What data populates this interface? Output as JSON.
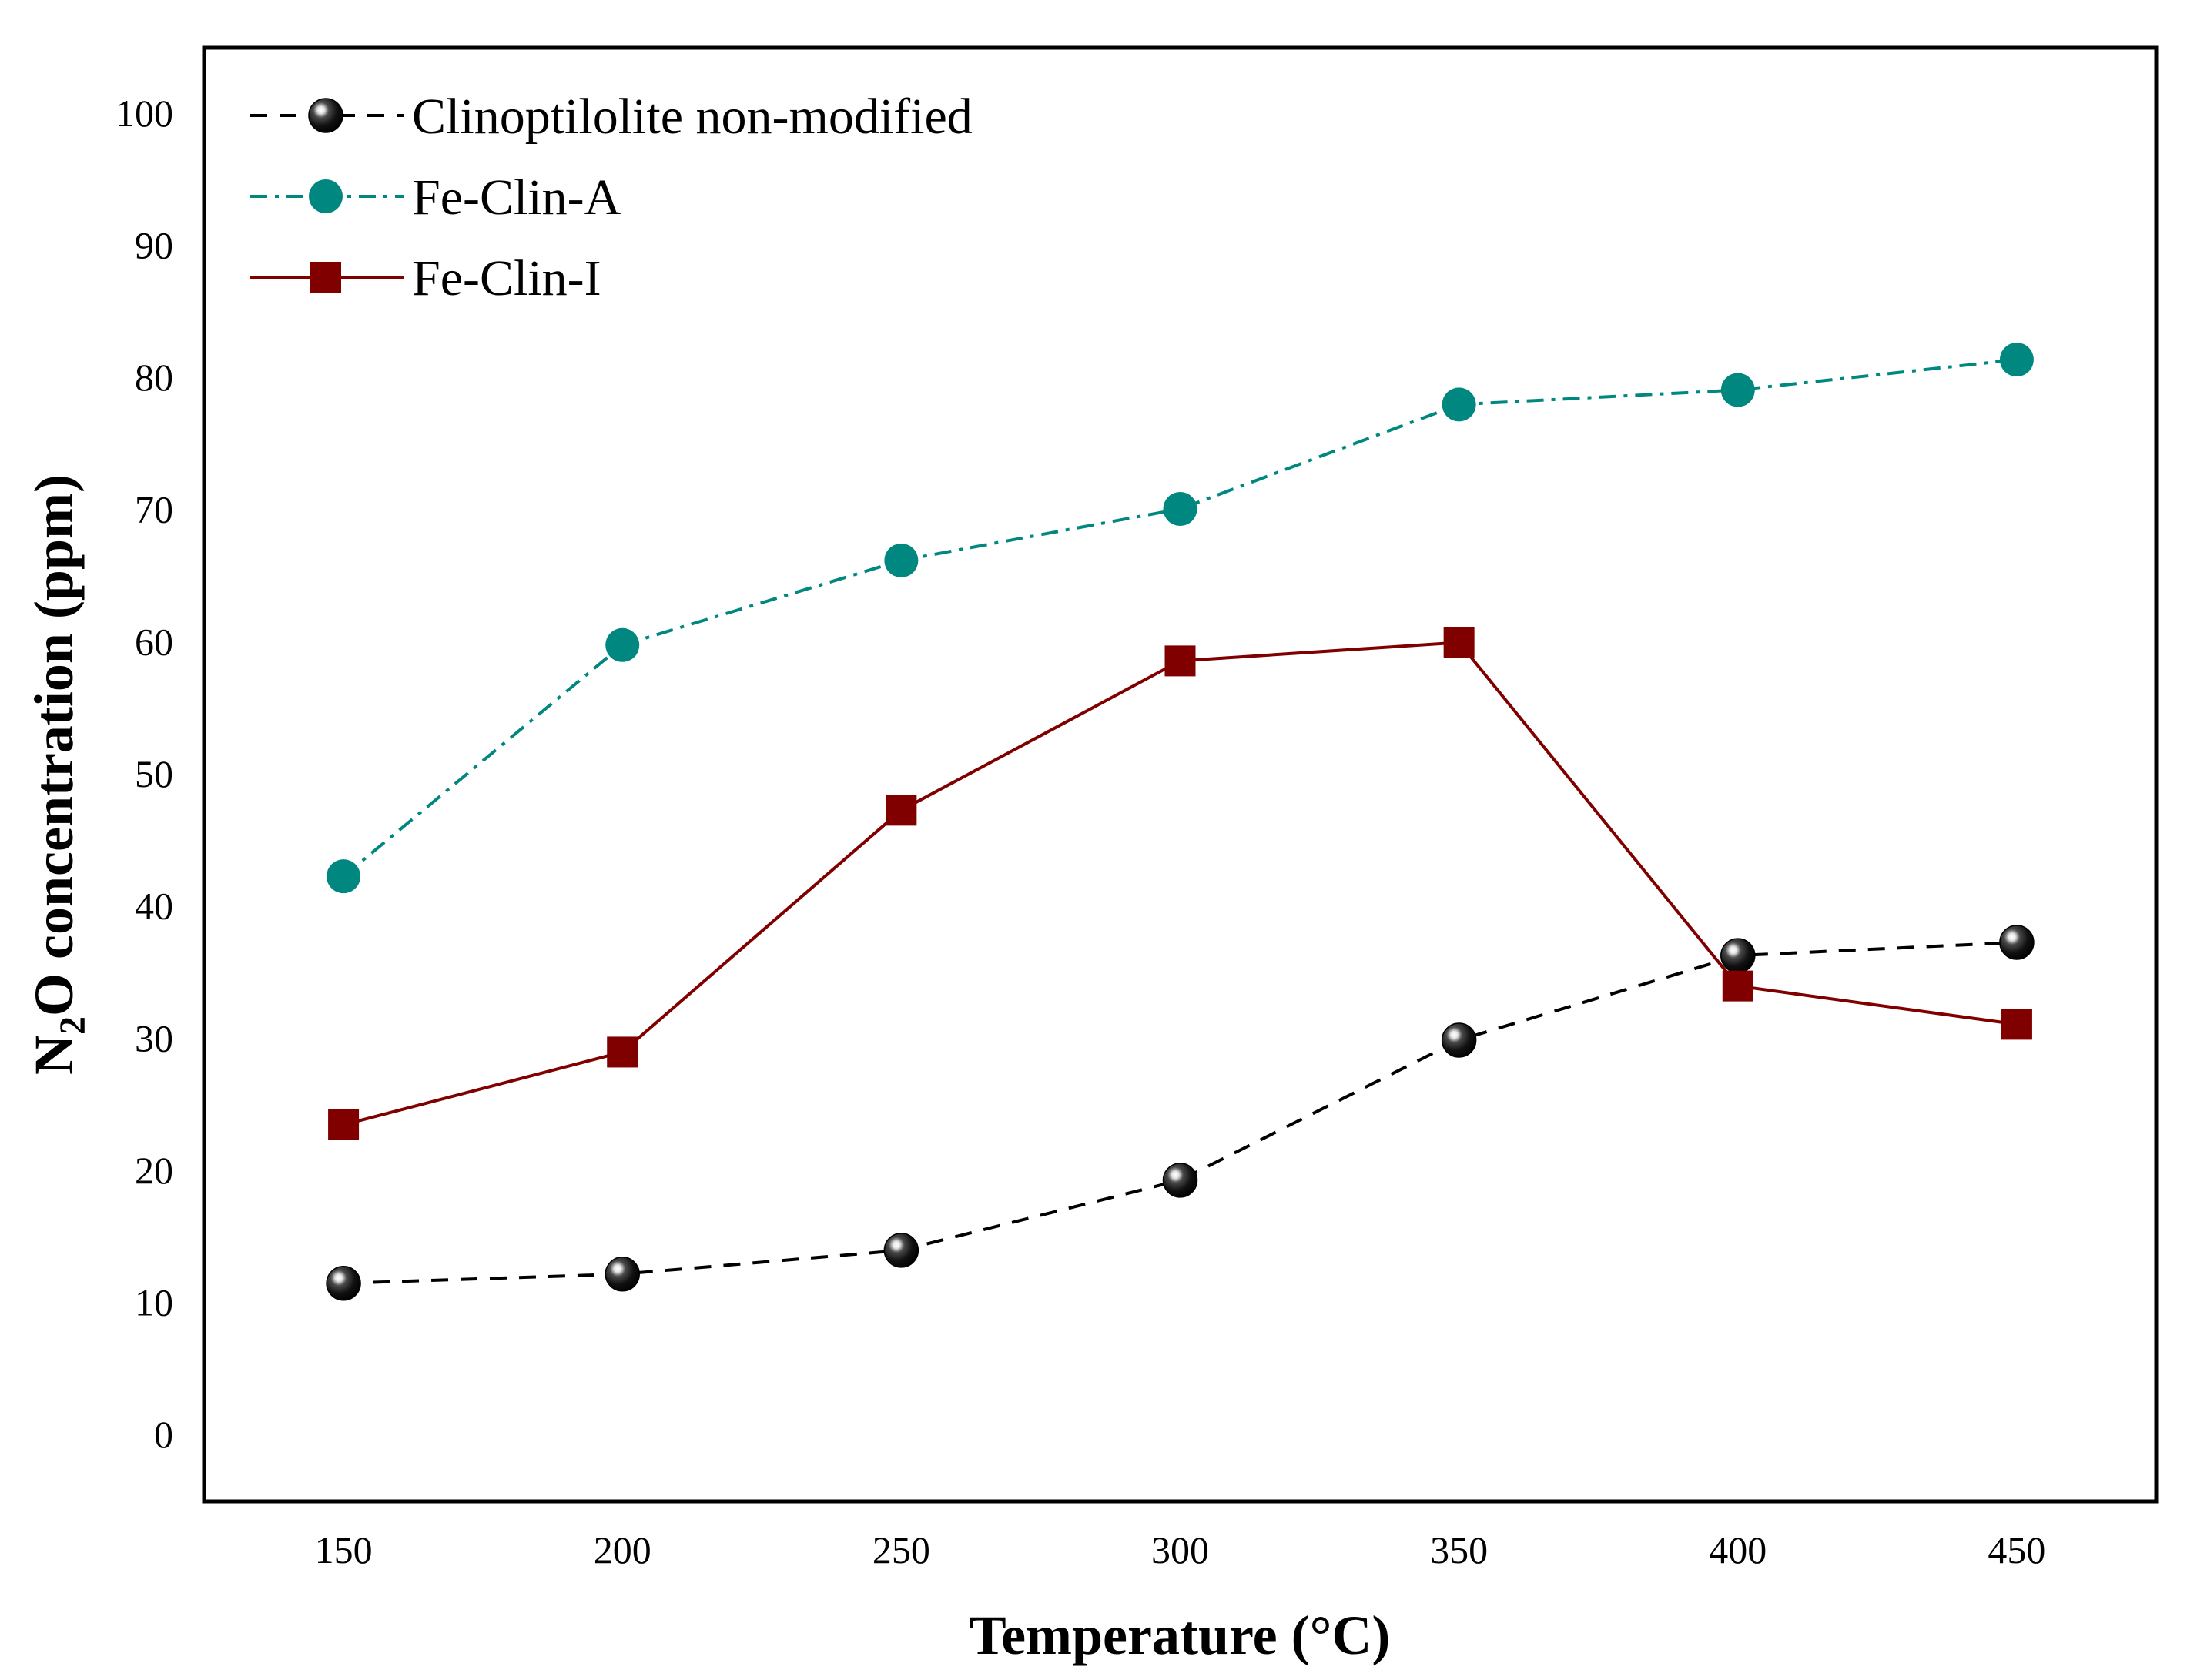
{
  "chart_data": {
    "type": "line",
    "title": "",
    "xlabel": "Temperature (°C)",
    "ylabel": {
      "prefix": "N",
      "subscript": "2",
      "suffix": "O concentration (ppm)"
    },
    "x": [
      150,
      200,
      250,
      300,
      350,
      400,
      450
    ],
    "x_ticks": [
      "150",
      "200",
      "250",
      "300",
      "350",
      "400",
      "450"
    ],
    "y_ticks": [
      "0",
      "10",
      "20",
      "30",
      "40",
      "50",
      "60",
      "70",
      "80",
      "90",
      "100"
    ],
    "xlim": [
      125,
      475
    ],
    "ylim": [
      -5,
      105
    ],
    "grid": false,
    "legend_position": "top-left",
    "series": [
      {
        "name": "Clinoptilolite non-modified",
        "values": [
          11.5,
          12.2,
          14.0,
          19.3,
          29.9,
          36.3,
          37.3
        ],
        "color": "#000000",
        "line_style": "dashed",
        "marker": "sphere"
      },
      {
        "name": "Fe-Clin-A",
        "values": [
          42.3,
          59.8,
          66.2,
          70.1,
          78.0,
          79.1,
          81.4
        ],
        "color": "#00877F",
        "line_style": "dash-dot",
        "marker": "circle"
      },
      {
        "name": "Fe-Clin-I",
        "values": [
          23.5,
          29.0,
          47.3,
          58.6,
          60.0,
          34.0,
          31.1
        ],
        "color": "#800000",
        "line_style": "solid",
        "marker": "square"
      }
    ]
  }
}
